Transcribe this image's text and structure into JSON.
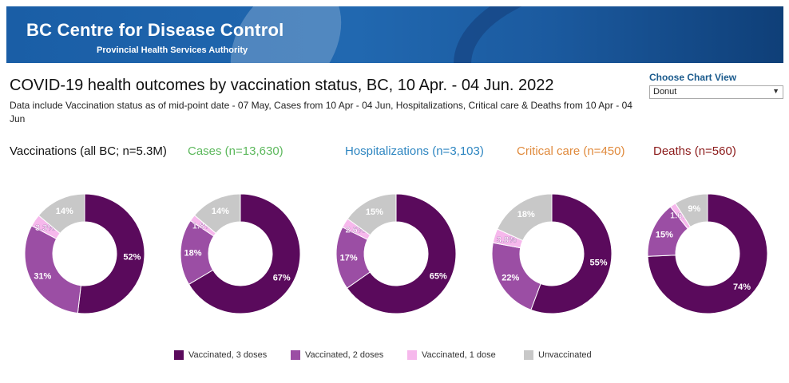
{
  "banner": {
    "org_name": "BC Centre for Disease Control",
    "org_sub": "Provincial Health Services Authority"
  },
  "title": "COVID-19 health outcomes by vaccination status, BC,  10 Apr. - 04 Jun. 2022",
  "note": "Data include Vaccination status as of mid-point date - 07 May, Cases  from  10 Apr - 04 Jun, Hospitalizations, Critical care & Deaths from 10 Apr - 04 Jun",
  "chart_view": {
    "label": "Choose Chart View",
    "selected": "Donut",
    "caret": "▼"
  },
  "colors": {
    "v3": "#5a0a5c",
    "v2": "#9b4ea4",
    "v1": "#f6b8ec",
    "un": "#c8c8c8",
    "cases": "#5cb85c",
    "hosp": "#2e86c1",
    "crit": "#e08a3c",
    "deaths": "#8b1a1a",
    "vacc": "#111111"
  },
  "legend": [
    "Vaccinated, 3 doses",
    "Vaccinated, 2 doses",
    "Vaccinated, 1 dose",
    "Unvaccinated"
  ],
  "chart_data": [
    {
      "type": "pie",
      "title": "Vaccinations (all BC; n=5.3M)",
      "categories": [
        "Vaccinated, 3 doses",
        "Vaccinated, 2 doses",
        "Vaccinated, 1 dose",
        "Unvaccinated"
      ],
      "values": [
        52,
        31,
        3.3,
        14
      ],
      "labels": [
        "52%",
        "31%",
        "3.3%",
        "14%"
      ]
    },
    {
      "type": "pie",
      "title": "Cases (n=13,630)",
      "categories": [
        "Vaccinated, 3 doses",
        "Vaccinated, 2 doses",
        "Vaccinated, 1 dose",
        "Unvaccinated"
      ],
      "values": [
        67,
        18,
        1.8,
        14
      ],
      "labels": [
        "67%",
        "18%",
        "1.8%",
        "14%"
      ]
    },
    {
      "type": "pie",
      "title": "Hospitalizations (n=3,103)",
      "categories": [
        "Vaccinated, 3 doses",
        "Vaccinated, 2 doses",
        "Vaccinated, 1 dose",
        "Unvaccinated"
      ],
      "values": [
        65,
        17,
        2.6,
        15
      ],
      "labels": [
        "65%",
        "17%",
        "2.6%",
        "15%"
      ]
    },
    {
      "type": "pie",
      "title": "Critical care (n=450)",
      "categories": [
        "Vaccinated, 3 doses",
        "Vaccinated, 2 doses",
        "Vaccinated, 1 dose",
        "Unvaccinated"
      ],
      "values": [
        55,
        22,
        3.8,
        18
      ],
      "labels": [
        "55%",
        "22%",
        "3.8%",
        "18%"
      ]
    },
    {
      "type": "pie",
      "title": "Deaths (n=560)",
      "categories": [
        "Vaccinated, 3 doses",
        "Vaccinated, 2 doses",
        "Vaccinated, 1 dose",
        "Unvaccinated"
      ],
      "values": [
        74,
        15,
        1.6,
        9
      ],
      "labels": [
        "74%",
        "15%",
        "1.6%",
        "9%"
      ]
    }
  ]
}
